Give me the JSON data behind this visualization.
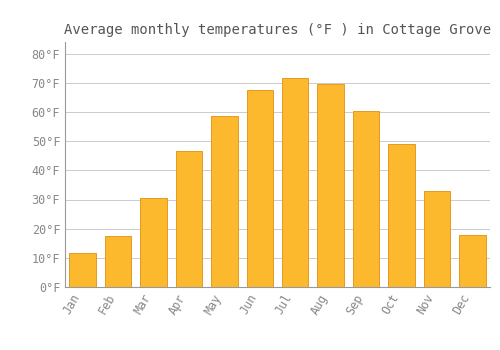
{
  "title": "Average monthly temperatures (°F ) in Cottage Grove",
  "months": [
    "Jan",
    "Feb",
    "Mar",
    "Apr",
    "May",
    "Jun",
    "Jul",
    "Aug",
    "Sep",
    "Oct",
    "Nov",
    "Dec"
  ],
  "values": [
    11.5,
    17.5,
    30.5,
    46.5,
    58.5,
    67.5,
    71.5,
    69.5,
    60.5,
    49.0,
    33.0,
    18.0
  ],
  "bar_color": "#FDB92E",
  "bar_edge_color": "#E09010",
  "background_color": "#FFFFFF",
  "grid_color": "#CCCCCC",
  "title_color": "#555555",
  "tick_label_color": "#888888",
  "ylim": [
    0,
    84
  ],
  "yticks": [
    0,
    10,
    20,
    30,
    40,
    50,
    60,
    70,
    80
  ],
  "ytick_labels": [
    "0°F",
    "10°F",
    "20°F",
    "30°F",
    "40°F",
    "50°F",
    "60°F",
    "70°F",
    "80°F"
  ],
  "title_fontsize": 10,
  "tick_fontsize": 8.5,
  "font_family": "monospace",
  "bar_width": 0.75
}
